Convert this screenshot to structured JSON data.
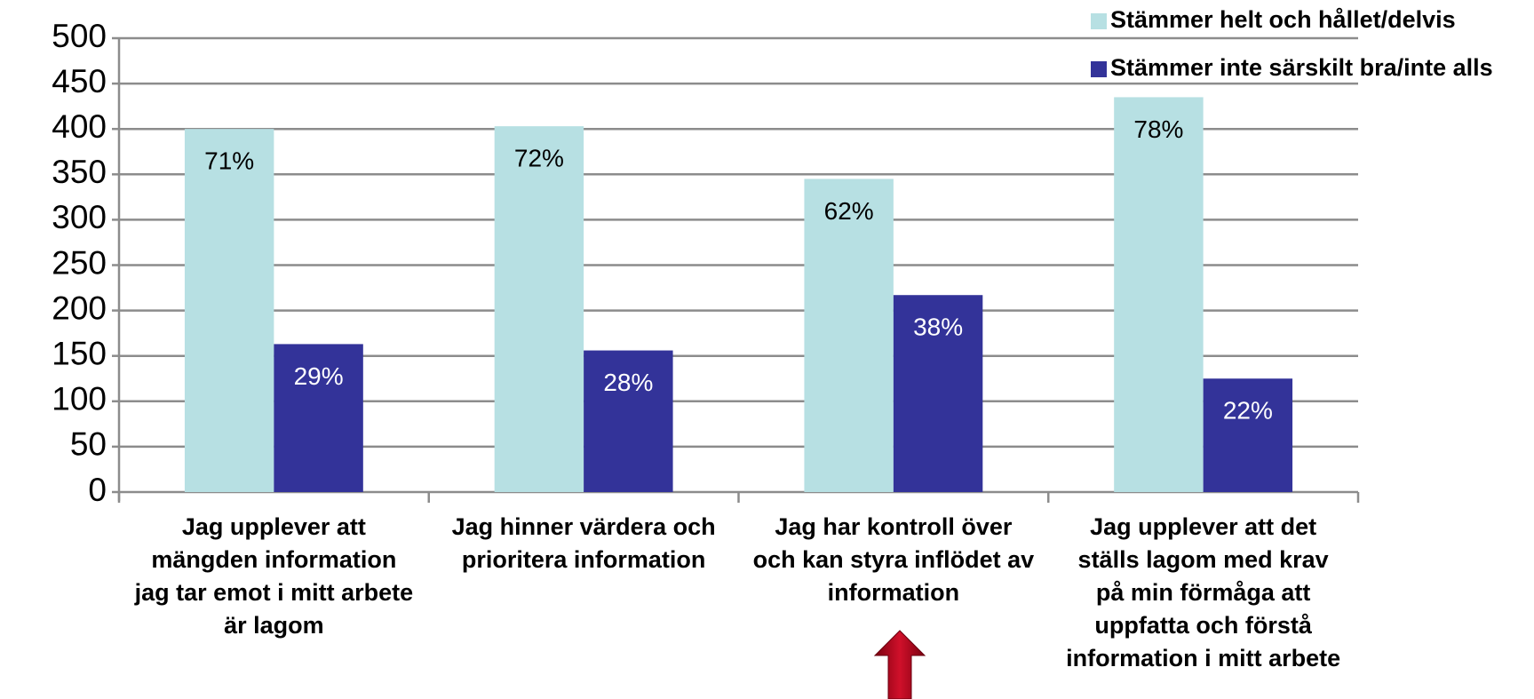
{
  "chart_data": {
    "type": "bar",
    "categories": [
      [
        "Jag upplever att",
        "mängden information",
        "jag tar emot i mitt arbete",
        "är lagom"
      ],
      [
        "Jag hinner värdera och",
        "prioritera information"
      ],
      [
        "Jag har kontroll över",
        "och kan styra inflödet av",
        "information"
      ],
      [
        "Jag upplever att det",
        "ställs lagom med krav",
        "på min förmåga att",
        "uppfatta och förstå",
        "information i mitt arbete"
      ]
    ],
    "series": [
      {
        "name": "Stämmer helt och hållet/delvis",
        "color": "#b7e0e3",
        "label_color": "#000000",
        "values": [
          400,
          403,
          345,
          435
        ],
        "data_labels": [
          "71%",
          "72%",
          "62%",
          "78%"
        ]
      },
      {
        "name": "Stämmer inte särskilt bra/inte alls",
        "color": "#333399",
        "label_color": "#ffffff",
        "values": [
          163,
          156,
          217,
          125
        ],
        "data_labels": [
          "29%",
          "28%",
          "38%",
          "22%"
        ]
      }
    ],
    "ylim": [
      0,
      500
    ],
    "yticks": [
      0,
      50,
      100,
      150,
      200,
      250,
      300,
      350,
      400,
      450,
      500
    ],
    "grid": true,
    "legend": "top-right"
  }
}
